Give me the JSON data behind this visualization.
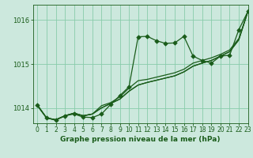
{
  "bg_color": "#cce8dd",
  "grid_color": "#88ccaa",
  "line_color": "#1a5c1a",
  "xlabel": "Graphe pression niveau de la mer (hPa)",
  "xlim": [
    -0.5,
    23
  ],
  "ylim": [
    1013.65,
    1016.35
  ],
  "yticks": [
    1014,
    1015,
    1016
  ],
  "xticks": [
    0,
    1,
    2,
    3,
    4,
    5,
    6,
    7,
    8,
    9,
    10,
    11,
    12,
    13,
    14,
    15,
    16,
    17,
    18,
    19,
    20,
    21,
    22,
    23
  ],
  "series_plain": [
    [
      1014.05,
      1013.77,
      1013.73,
      1013.82,
      1013.88,
      1013.82,
      1013.86,
      1014.0,
      1014.1,
      1014.2,
      1014.38,
      1014.52,
      1014.58,
      1014.63,
      1014.68,
      1014.73,
      1014.82,
      1014.95,
      1015.02,
      1015.08,
      1015.18,
      1015.28,
      1015.55,
      1016.2
    ],
    [
      1014.05,
      1013.77,
      1013.73,
      1013.82,
      1013.88,
      1013.82,
      1013.86,
      1014.0,
      1014.1,
      1014.2,
      1014.38,
      1014.52,
      1014.58,
      1014.63,
      1014.68,
      1014.73,
      1014.82,
      1014.95,
      1015.02,
      1015.08,
      1015.18,
      1015.28,
      1015.55,
      1016.2
    ],
    [
      1014.05,
      1013.77,
      1013.73,
      1013.82,
      1013.88,
      1013.82,
      1013.86,
      1014.05,
      1014.12,
      1014.25,
      1014.45,
      1014.62,
      1014.65,
      1014.7,
      1014.75,
      1014.8,
      1014.88,
      1015.02,
      1015.08,
      1015.14,
      1015.22,
      1015.32,
      1015.58,
      1016.2
    ]
  ],
  "series_marked": [
    1014.07,
    1013.77,
    1013.72,
    1013.82,
    1013.86,
    1013.79,
    1013.78,
    1013.86,
    1014.08,
    1014.28,
    1014.48,
    1015.62,
    1015.63,
    1015.53,
    1015.47,
    1015.48,
    1015.63,
    1015.18,
    1015.08,
    1015.02,
    1015.18,
    1015.2,
    1015.78,
    1016.2
  ],
  "marker": "D",
  "markersize": 2.8,
  "linewidth": 0.9
}
